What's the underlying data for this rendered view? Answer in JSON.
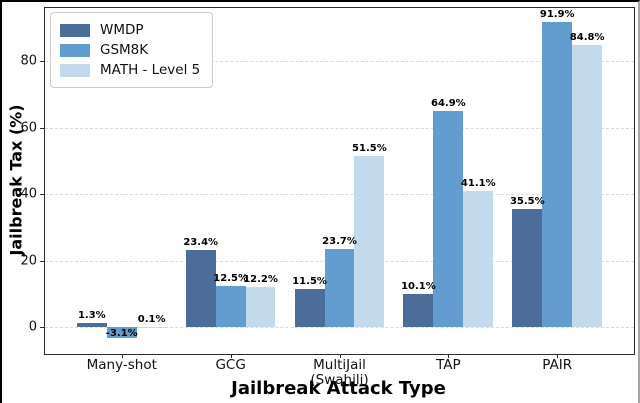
{
  "chart_data": {
    "type": "bar",
    "title": "",
    "xlabel": "Jailbreak Attack Type",
    "ylabel": "Jailbreak Tax (%)",
    "categories": [
      "Many-shot",
      "GCG",
      "MultiJail\n(Swahili)",
      "TAP",
      "PAIR"
    ],
    "series": [
      {
        "name": "WMDP",
        "color": "#4c6c99",
        "values": [
          1.3,
          23.4,
          11.5,
          10.1,
          35.5
        ]
      },
      {
        "name": "GSM8K",
        "color": "#639cce",
        "values": [
          -3.1,
          12.5,
          23.7,
          64.9,
          91.9
        ]
      },
      {
        "name": "MATH - Level 5",
        "color": "#c2daec",
        "values": [
          0.1,
          12.2,
          51.5,
          41.1,
          84.8
        ]
      }
    ],
    "value_labels": [
      [
        "1.3%",
        "23.4%",
        "11.5%",
        "10.1%",
        "35.5%"
      ],
      [
        "-3.1%",
        "12.5%",
        "23.7%",
        "64.9%",
        "91.9%"
      ],
      [
        "0.1%",
        "12.2%",
        "51.5%",
        "41.1%",
        "84.8%"
      ]
    ],
    "yticks": [
      0,
      20,
      40,
      60,
      80
    ],
    "ylim": [
      -8,
      96
    ],
    "grid": "horizontal-dashed",
    "grid_color": "#d9d9d9",
    "legend_position": "upper-left"
  }
}
